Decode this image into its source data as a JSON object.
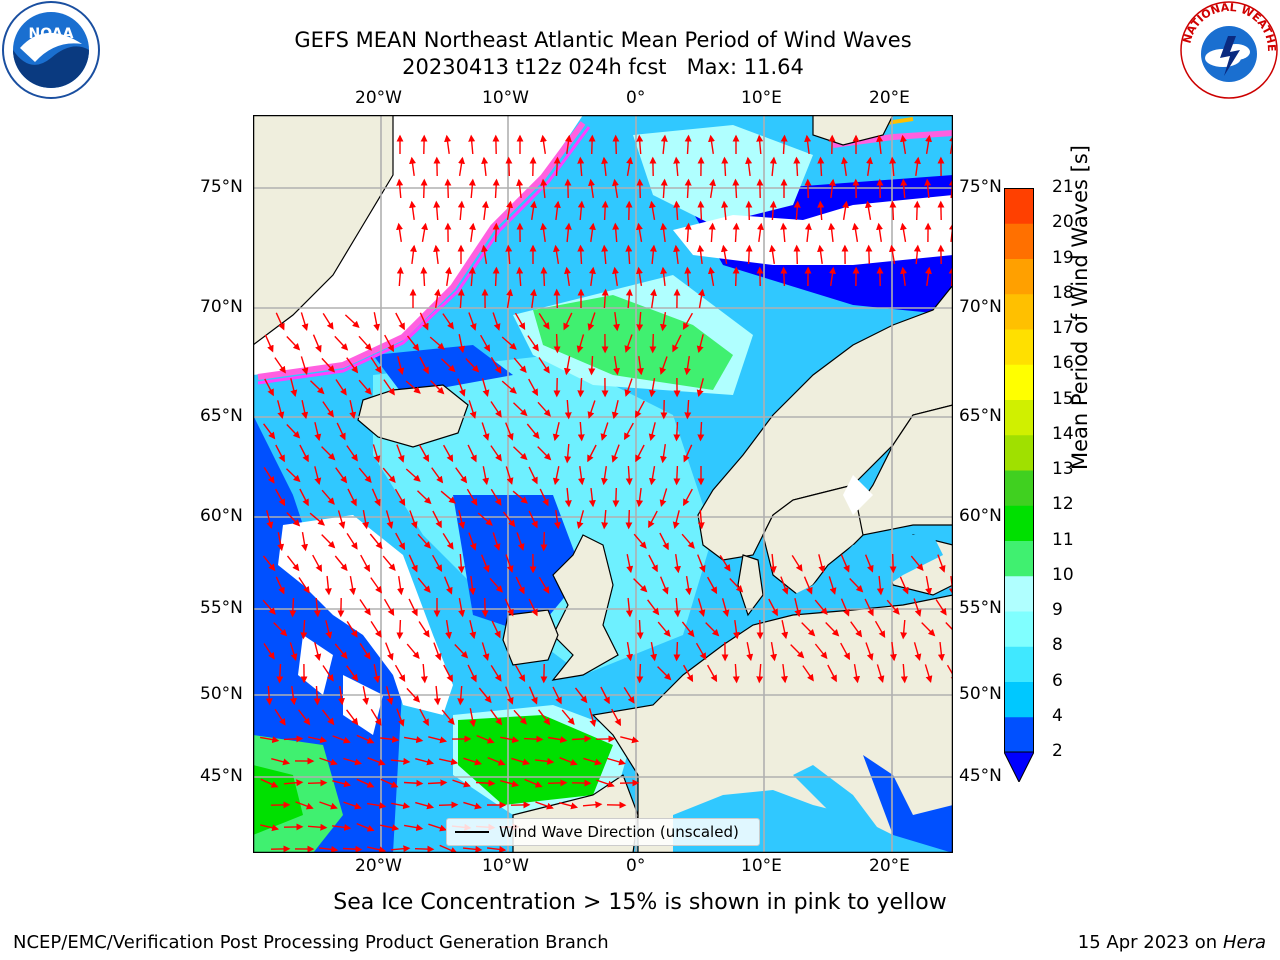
{
  "title_line1": "GEFS MEAN Northeast Atlantic Mean Period of Wind Waves",
  "title_line2": "20230413 t12z 024h fcst   Max: 11.64",
  "caption": "Sea Ice Concentration > 15% is shown in pink to yellow",
  "footer_left": "NCEP/EMC/Verification Post Processing Product Generation Branch",
  "footer_right_prefix": "15 Apr 2023 on ",
  "footer_right_host": "Hera",
  "legend_label": "Wind Wave Direction (unscaled)",
  "colorbar": {
    "title": "Mean Period of Wind Waves [s]",
    "ticks": [
      "2",
      "4",
      "6",
      "8",
      "9",
      "10",
      "11",
      "12",
      "13",
      "14",
      "15",
      "16",
      "17",
      "18",
      "19",
      "20",
      "21"
    ],
    "colors": [
      "#0050ff",
      "#00c8ff",
      "#40e8ff",
      "#80ffff",
      "#b0ffff",
      "#40f070",
      "#00e000",
      "#40d020",
      "#a0e000",
      "#d0f000",
      "#ffff00",
      "#ffe000",
      "#ffc000",
      "#ffa000",
      "#ff7000",
      "#ff4000",
      "#ff0000"
    ],
    "under_color": "#0000ff"
  },
  "axes": {
    "lon_ticks": [
      "20°W",
      "10°W",
      "0°",
      "10°E",
      "20°E"
    ],
    "lat_ticks": [
      "75°N",
      "70°N",
      "65°N",
      "60°N",
      "55°N",
      "50°N",
      "45°N"
    ]
  },
  "logos": {
    "left": "NOAA",
    "right": "NATIONAL WEATHER SERVICE"
  },
  "colors": {
    "land": "#efeedd",
    "grid": "#b0b0b0",
    "arrow": "#ff0000",
    "ocean_base": "#30c8ff"
  }
}
